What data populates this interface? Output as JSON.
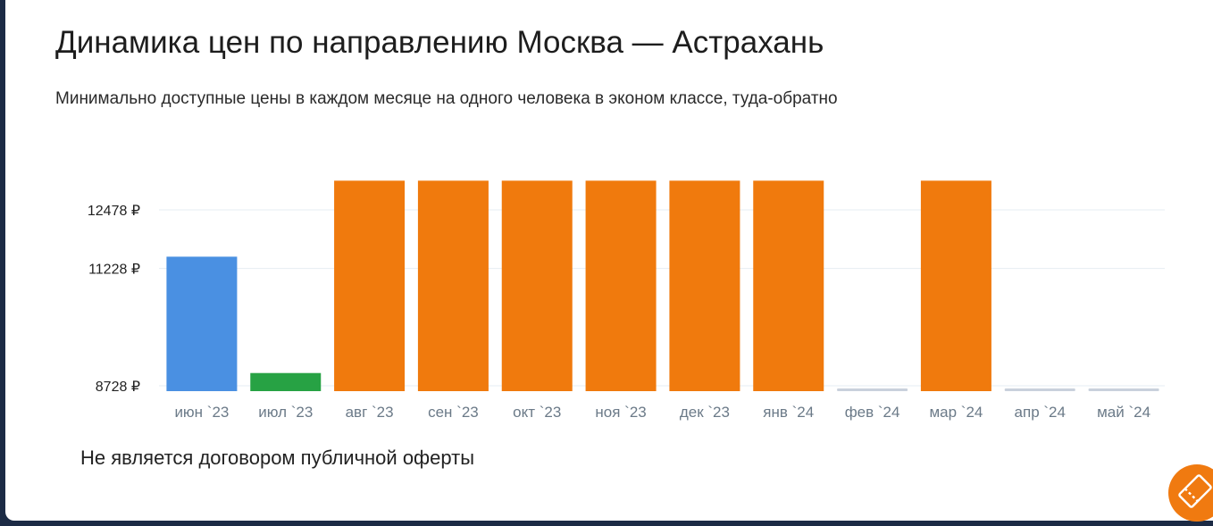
{
  "title": "Динамика цен по направлению Москва — Астрахань",
  "subtitle": "Минимально доступные цены в каждом месяце на одного человека в эконом классе, туда-обратно",
  "disclaimer": "Не является договором публичной оферты",
  "fab_icon": "ticket-icon",
  "colors": {
    "orange": "#f07a0d",
    "blue": "#4a90e2",
    "green": "#27a244",
    "empty": "#c9d1dc",
    "grid": "#e6edf3",
    "tick": "#6b7a88",
    "ytick": "#222222"
  },
  "chart_data": {
    "type": "bar",
    "title": "",
    "xlabel": "",
    "ylabel": "",
    "categories": [
      "июн `23",
      "июл `23",
      "авг `23",
      "сен `23",
      "окт `23",
      "ноя `23",
      "дек `23",
      "янв `24",
      "фев `24",
      "мар `24",
      "апр `24",
      "май `24"
    ],
    "values": [
      11480,
      9000,
      13100,
      13100,
      13100,
      13100,
      13100,
      13100,
      null,
      13100,
      null,
      null
    ],
    "bar_colors": [
      "blue",
      "green",
      "orange",
      "orange",
      "orange",
      "orange",
      "orange",
      "orange",
      "empty",
      "orange",
      "empty",
      "empty"
    ],
    "yticks": [
      8728,
      11228,
      12478
    ],
    "ytick_labels": [
      "8728 ₽",
      "11228 ₽",
      "12478 ₽"
    ],
    "grid": true,
    "legend": "none"
  }
}
